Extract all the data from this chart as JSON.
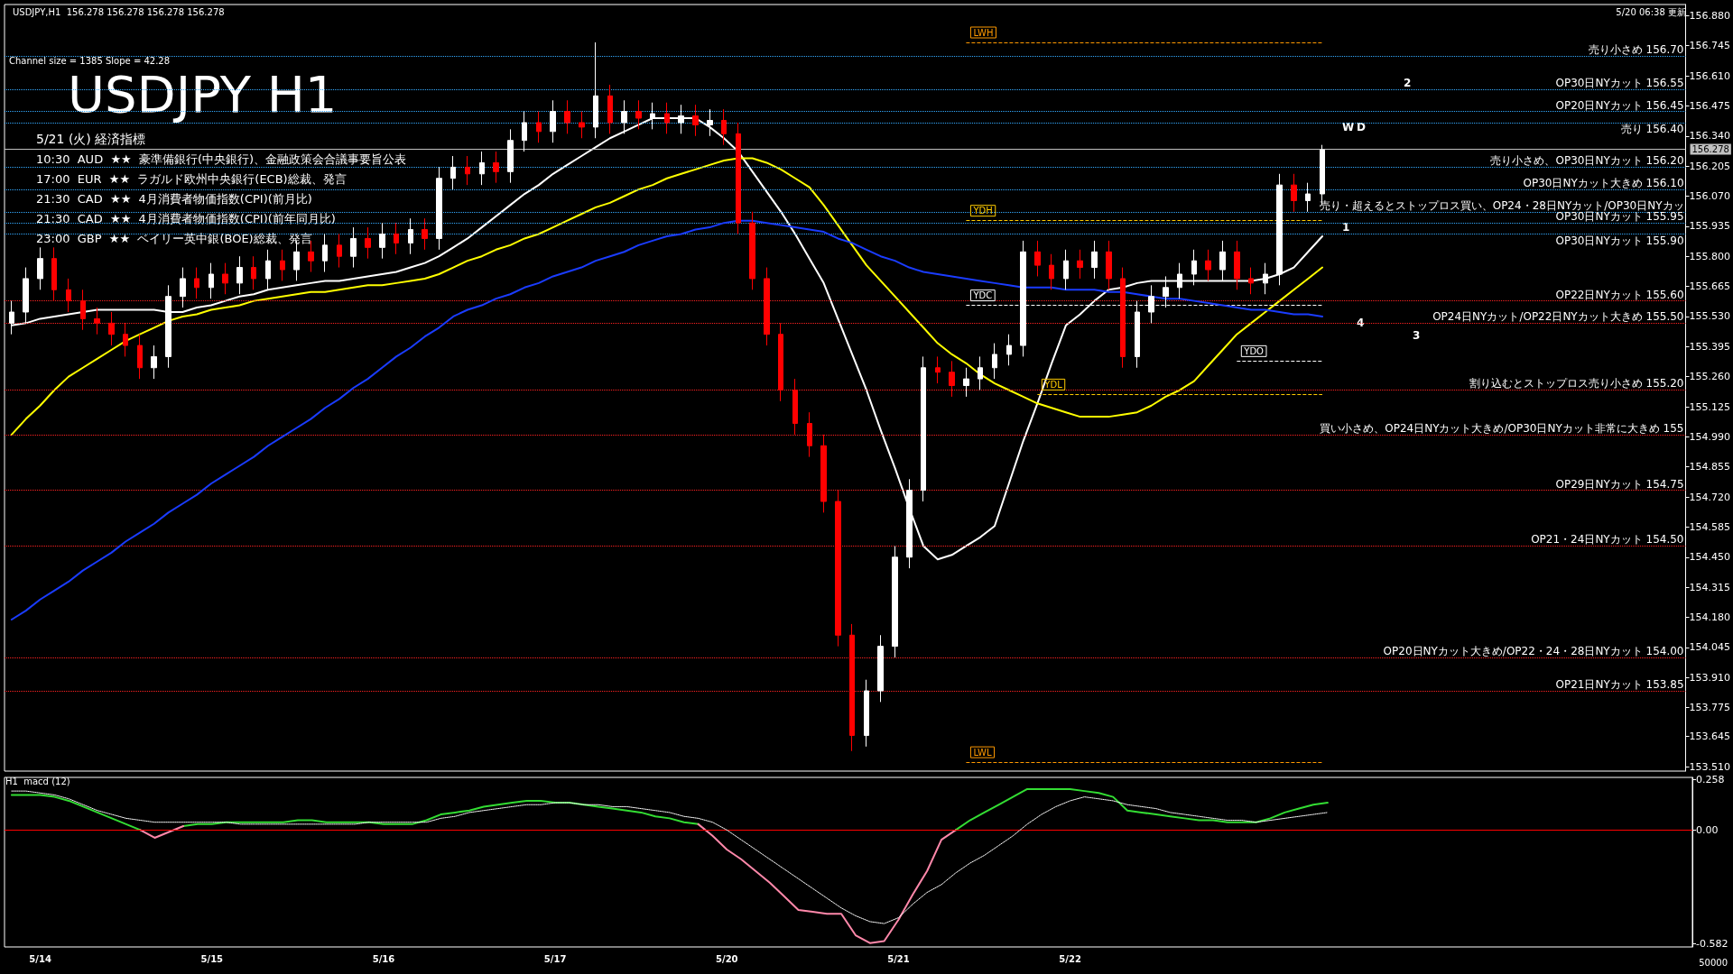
{
  "chart_data": [
    {
      "type": "candlestick",
      "title": "USDJPY H1",
      "subtitle": "5/21 (火) 経済指標",
      "tick_labels": "y",
      "categories": [
        null,
        null,
        null,
        null,
        null,
        null,
        null,
        null,
        null,
        null,
        null,
        null,
        null,
        null,
        null,
        null,
        null,
        null,
        null,
        null,
        null,
        null,
        null,
        null,
        null,
        null,
        null,
        null,
        null,
        null,
        null,
        null,
        null,
        null,
        null,
        null,
        null,
        null,
        null,
        null,
        null,
        null,
        null,
        null,
        null,
        null,
        null,
        null,
        null,
        null,
        null,
        null,
        null,
        null,
        null,
        null,
        null,
        null,
        null,
        null,
        null,
        null,
        null,
        null,
        null,
        null,
        null,
        null,
        null,
        null,
        null,
        null,
        null,
        null,
        null,
        null,
        null,
        null,
        null,
        null,
        null,
        null,
        null,
        null,
        null,
        null,
        null,
        null,
        null,
        null,
        null,
        null,
        null,
        null,
        null,
        null,
        null,
        null,
        null,
        null,
        null,
        null,
        null,
        null,
        null,
        null,
        null,
        null,
        null,
        null,
        null,
        null,
        null,
        null,
        null,
        null,
        null,
        null
      ],
      "ohlc": [
        [
          155.5,
          155.6,
          155.45,
          155.55
        ],
        [
          155.55,
          155.75,
          155.5,
          155.7
        ],
        [
          155.7,
          155.84,
          155.65,
          155.79
        ],
        [
          155.79,
          155.84,
          155.6,
          155.65
        ],
        [
          155.65,
          155.7,
          155.55,
          155.6
        ],
        [
          155.6,
          155.65,
          155.47,
          155.52
        ],
        [
          155.52,
          155.57,
          155.45,
          155.5
        ],
        [
          155.5,
          155.55,
          155.4,
          155.45
        ],
        [
          155.45,
          155.5,
          155.35,
          155.4
        ],
        [
          155.4,
          155.45,
          155.25,
          155.3
        ],
        [
          155.3,
          155.4,
          155.25,
          155.35
        ],
        [
          155.35,
          155.67,
          155.3,
          155.62
        ],
        [
          155.62,
          155.75,
          155.57,
          155.7
        ],
        [
          155.7,
          155.75,
          155.61,
          155.66
        ],
        [
          155.66,
          155.77,
          155.61,
          155.72
        ],
        [
          155.72,
          155.77,
          155.63,
          155.68
        ],
        [
          155.68,
          155.8,
          155.63,
          155.75
        ],
        [
          155.75,
          155.8,
          155.65,
          155.7
        ],
        [
          155.7,
          155.83,
          155.65,
          155.78
        ],
        [
          155.78,
          155.83,
          155.69,
          155.74
        ],
        [
          155.74,
          155.87,
          155.69,
          155.82
        ],
        [
          155.82,
          155.87,
          155.73,
          155.78
        ],
        [
          155.78,
          155.9,
          155.73,
          155.85
        ],
        [
          155.85,
          155.9,
          155.75,
          155.8
        ],
        [
          155.8,
          155.93,
          155.75,
          155.88
        ],
        [
          155.88,
          155.93,
          155.79,
          155.84
        ],
        [
          155.84,
          155.95,
          155.79,
          155.9
        ],
        [
          155.9,
          155.95,
          155.81,
          155.86
        ],
        [
          155.86,
          155.97,
          155.81,
          155.92
        ],
        [
          155.92,
          155.97,
          155.83,
          155.88
        ],
        [
          155.88,
          156.2,
          155.83,
          156.15
        ],
        [
          156.15,
          156.25,
          156.1,
          156.2
        ],
        [
          156.2,
          156.25,
          156.12,
          156.17
        ],
        [
          156.17,
          156.27,
          156.12,
          156.22
        ],
        [
          156.22,
          156.27,
          156.13,
          156.18
        ],
        [
          156.18,
          156.37,
          156.13,
          156.32
        ],
        [
          156.32,
          156.45,
          156.27,
          156.4
        ],
        [
          156.4,
          156.45,
          156.31,
          156.36
        ],
        [
          156.36,
          156.5,
          156.31,
          156.45
        ],
        [
          156.45,
          156.5,
          156.35,
          156.4
        ],
        [
          156.4,
          156.45,
          156.33,
          156.38
        ],
        [
          156.38,
          156.76,
          156.33,
          156.52
        ],
        [
          156.52,
          156.57,
          156.35,
          156.4
        ],
        [
          156.4,
          156.5,
          156.35,
          156.45
        ],
        [
          156.45,
          156.5,
          156.37,
          156.42
        ],
        [
          156.42,
          156.49,
          156.37,
          156.44
        ],
        [
          156.44,
          156.49,
          156.35,
          156.4
        ],
        [
          156.4,
          156.48,
          156.35,
          156.43
        ],
        [
          156.43,
          156.48,
          156.34,
          156.39
        ],
        [
          156.39,
          156.46,
          156.34,
          156.41
        ],
        [
          156.41,
          156.46,
          156.3,
          156.35
        ],
        [
          156.35,
          156.4,
          155.9,
          155.95
        ],
        [
          155.95,
          156.0,
          155.65,
          155.7
        ],
        [
          155.7,
          155.75,
          155.4,
          155.45
        ],
        [
          155.45,
          155.5,
          155.15,
          155.2
        ],
        [
          155.2,
          155.25,
          155.0,
          155.05
        ],
        [
          155.05,
          155.1,
          154.9,
          154.95
        ],
        [
          154.95,
          155.0,
          154.65,
          154.7
        ],
        [
          154.7,
          154.75,
          154.05,
          154.1
        ],
        [
          154.1,
          154.15,
          153.58,
          153.65
        ],
        [
          153.65,
          153.9,
          153.6,
          153.85
        ],
        [
          153.85,
          154.1,
          153.8,
          154.05
        ],
        [
          154.05,
          154.5,
          154.0,
          154.45
        ],
        [
          154.45,
          154.8,
          154.4,
          154.75
        ],
        [
          154.75,
          155.35,
          154.7,
          155.3
        ],
        [
          155.3,
          155.35,
          155.23,
          155.28
        ],
        [
          155.28,
          155.33,
          155.17,
          155.22
        ],
        [
          155.22,
          155.3,
          155.17,
          155.25
        ],
        [
          155.25,
          155.35,
          155.2,
          155.3
        ],
        [
          155.3,
          155.41,
          155.25,
          155.36
        ],
        [
          155.36,
          155.45,
          155.31,
          155.4
        ],
        [
          155.4,
          155.87,
          155.35,
          155.82
        ],
        [
          155.82,
          155.87,
          155.71,
          155.76
        ],
        [
          155.76,
          155.81,
          155.65,
          155.7
        ],
        [
          155.7,
          155.83,
          155.65,
          155.78
        ],
        [
          155.78,
          155.83,
          155.7,
          155.75
        ],
        [
          155.75,
          155.87,
          155.7,
          155.82
        ],
        [
          155.82,
          155.87,
          155.65,
          155.7
        ],
        [
          155.7,
          155.75,
          155.3,
          155.35
        ],
        [
          155.35,
          155.6,
          155.3,
          155.55
        ],
        [
          155.55,
          155.67,
          155.5,
          155.62
        ],
        [
          155.62,
          155.71,
          155.57,
          155.66
        ],
        [
          155.66,
          155.77,
          155.61,
          155.72
        ],
        [
          155.72,
          155.83,
          155.67,
          155.78
        ],
        [
          155.78,
          155.83,
          155.69,
          155.74
        ],
        [
          155.74,
          155.87,
          155.69,
          155.82
        ],
        [
          155.82,
          155.87,
          155.65,
          155.7
        ],
        [
          155.7,
          155.75,
          155.63,
          155.68
        ],
        [
          155.68,
          155.77,
          155.63,
          155.72
        ],
        [
          155.72,
          156.17,
          155.67,
          156.12
        ],
        [
          156.12,
          156.17,
          156.0,
          156.05
        ],
        [
          156.05,
          156.13,
          156.0,
          156.08
        ],
        [
          156.08,
          156.3,
          156.03,
          156.278
        ],
        null,
        null,
        null,
        null,
        null,
        null,
        null,
        null,
        null,
        null,
        null,
        null,
        null,
        null,
        null,
        null,
        null,
        null,
        null,
        null,
        null,
        null,
        null,
        null,
        null
      ],
      "colors": [
        "#ffffff",
        "#ffffff",
        "#ffffff",
        "#ff0000",
        "#ff0000",
        "#ff0000",
        "#ff0000",
        "#ff0000",
        "#ff0000",
        "#ff0000",
        "#ffffff",
        "#ffffff",
        "#ffffff",
        "#ff0000",
        "#ffffff",
        "#ff0000",
        "#ffffff",
        "#ff0000",
        "#ffffff",
        "#ff0000",
        "#ffffff",
        "#ff0000",
        "#ffffff",
        "#ff0000",
        "#ffffff",
        "#ff0000",
        "#ffffff",
        "#ff0000",
        "#ffffff",
        "#ff0000",
        "#ffffff",
        "#ffffff",
        "#ff0000",
        "#ffffff",
        "#ff0000",
        "#ffffff",
        "#ffffff",
        "#ff0000",
        "#ffffff",
        "#ff0000",
        "#ff0000",
        "#ffffff",
        "#ff0000",
        "#ffffff",
        "#ff0000",
        "#ffffff",
        "#ff0000",
        "#ffffff",
        "#ff0000",
        "#ffffff",
        "#ff0000",
        "#ff0000",
        "#ff0000",
        "#ff0000",
        "#ff0000",
        "#ff0000",
        "#ff0000",
        "#ff0000",
        "#ff0000",
        "#ff0000",
        "#ffffff",
        "#ffffff",
        "#ffffff",
        "#ffffff",
        "#ffffff",
        "#ff0000",
        "#ff0000",
        "#ffffff",
        "#ffffff",
        "#ffffff",
        "#ffffff",
        "#ffffff",
        "#ff0000",
        "#ff0000",
        "#ffffff",
        "#ff0000",
        "#ffffff",
        "#ff0000",
        "#ff0000",
        "#ffffff",
        "#ffffff",
        "#ffffff",
        "#ffffff",
        "#ffffff",
        "#ff0000",
        "#ffffff",
        "#ff0000",
        "#ff0000",
        "#ffffff",
        "#ffffff",
        "#ff0000",
        "#ffffff",
        "#ffffff",
        null,
        null,
        null,
        null,
        null,
        null,
        null,
        null,
        null,
        null,
        null,
        null,
        null,
        null,
        null,
        null,
        null,
        null,
        null,
        null,
        null,
        null,
        null,
        null,
        null
      ],
      "series": [
        {
          "type": "line",
          "color": "#ffffff",
          "values": [
            155.49,
            155.5,
            155.52,
            155.53,
            155.54,
            155.55,
            155.56,
            155.56,
            155.56,
            155.56,
            155.56,
            155.55,
            155.55,
            155.57,
            155.58,
            155.6,
            155.62,
            155.63,
            155.65,
            155.66,
            155.67,
            155.68,
            155.69,
            155.69,
            155.7,
            155.71,
            155.72,
            155.73,
            155.75,
            155.77,
            155.8,
            155.84,
            155.88,
            155.93,
            155.98,
            156.03,
            156.08,
            156.12,
            156.17,
            156.21,
            156.25,
            156.29,
            156.33,
            156.36,
            156.39,
            156.42,
            156.42,
            156.42,
            156.42,
            156.38,
            156.33,
            156.27,
            156.18,
            156.09,
            156.0,
            155.9,
            155.79,
            155.68,
            155.52,
            155.36,
            155.2,
            155.02,
            154.85,
            154.67,
            154.5,
            154.44,
            154.46,
            154.5,
            154.54,
            154.59,
            154.78,
            154.97,
            155.14,
            155.32,
            155.49,
            155.54,
            155.6,
            155.65,
            155.66,
            155.68,
            155.69,
            155.69,
            155.69,
            155.69,
            155.69,
            155.69,
            155.69,
            155.69,
            155.7,
            155.72,
            155.75,
            155.82,
            155.89,
            null,
            null,
            null,
            null,
            null,
            null,
            null,
            null,
            null,
            null,
            null,
            null,
            null,
            null,
            null,
            null,
            null,
            null,
            null,
            null,
            null,
            null,
            null,
            null,
            null
          ]
        },
        {
          "type": "line",
          "color": "#ffff00",
          "values": [
            155.0,
            155.07,
            155.13,
            155.2,
            155.26,
            155.3,
            155.34,
            155.38,
            155.42,
            155.45,
            155.48,
            155.51,
            155.53,
            155.54,
            155.56,
            155.57,
            155.58,
            155.6,
            155.61,
            155.62,
            155.63,
            155.64,
            155.64,
            155.65,
            155.66,
            155.67,
            155.67,
            155.68,
            155.69,
            155.7,
            155.72,
            155.75,
            155.78,
            155.8,
            155.83,
            155.85,
            155.88,
            155.9,
            155.93,
            155.96,
            155.99,
            156.02,
            156.04,
            156.07,
            156.1,
            156.12,
            156.15,
            156.17,
            156.19,
            156.21,
            156.23,
            156.24,
            156.24,
            156.22,
            156.19,
            156.15,
            156.11,
            156.03,
            155.94,
            155.85,
            155.76,
            155.69,
            155.62,
            155.55,
            155.48,
            155.41,
            155.36,
            155.32,
            155.27,
            155.23,
            155.2,
            155.17,
            155.14,
            155.12,
            155.1,
            155.08,
            155.08,
            155.08,
            155.09,
            155.1,
            155.13,
            155.17,
            155.2,
            155.24,
            155.31,
            155.38,
            155.45,
            155.5,
            155.55,
            155.6,
            155.65,
            155.7,
            155.75,
            null,
            null,
            null,
            null,
            null,
            null,
            null,
            null,
            null,
            null,
            null,
            null,
            null,
            null,
            null,
            null,
            null,
            null,
            null,
            null,
            null,
            null,
            null,
            null,
            null
          ]
        },
        {
          "type": "line",
          "color": "#1a3cff",
          "values": [
            154.17,
            154.21,
            154.26,
            154.3,
            154.34,
            154.39,
            154.43,
            154.47,
            154.52,
            154.56,
            154.6,
            154.65,
            154.69,
            154.73,
            154.78,
            154.82,
            154.86,
            154.9,
            154.95,
            154.99,
            155.03,
            155.07,
            155.12,
            155.16,
            155.21,
            155.25,
            155.3,
            155.35,
            155.39,
            155.44,
            155.48,
            155.53,
            155.56,
            155.58,
            155.61,
            155.63,
            155.66,
            155.68,
            155.71,
            155.73,
            155.75,
            155.78,
            155.8,
            155.82,
            155.85,
            155.87,
            155.89,
            155.9,
            155.92,
            155.93,
            155.95,
            155.96,
            155.96,
            155.95,
            155.94,
            155.93,
            155.92,
            155.91,
            155.88,
            155.86,
            155.83,
            155.8,
            155.78,
            155.75,
            155.73,
            155.72,
            155.71,
            155.7,
            155.69,
            155.68,
            155.67,
            155.66,
            155.66,
            155.66,
            155.65,
            155.65,
            155.65,
            155.64,
            155.64,
            155.63,
            155.62,
            155.61,
            155.61,
            155.6,
            155.59,
            155.58,
            155.57,
            155.56,
            155.56,
            155.55,
            155.54,
            155.54,
            155.53,
            null,
            null,
            null,
            null,
            null,
            null,
            null,
            null,
            null,
            null,
            null,
            null,
            null,
            null,
            null,
            null,
            null,
            null,
            null,
            null,
            null,
            null,
            null,
            null,
            null
          ]
        }
      ],
      "ylim": [
        153.49,
        156.93
      ],
      "yticks": [
        {
          "value": 156.88,
          "label": "156.880"
        },
        {
          "value": 156.745,
          "label": "156.745"
        },
        {
          "value": 156.61,
          "label": "156.610"
        },
        {
          "value": 156.475,
          "label": "156.475"
        },
        {
          "value": 156.34,
          "label": "156.340"
        },
        {
          "value": 156.205,
          "label": "156.205"
        },
        {
          "value": 156.07,
          "label": "156.070"
        },
        {
          "value": 155.935,
          "label": "155.935"
        },
        {
          "value": 155.8,
          "label": "155.800"
        },
        {
          "value": 155.665,
          "label": "155.665"
        },
        {
          "value": 155.53,
          "label": "155.530"
        },
        {
          "value": 155.395,
          "label": "155.395"
        },
        {
          "value": 155.26,
          "label": "155.260"
        },
        {
          "value": 155.125,
          "label": "155.125"
        },
        {
          "value": 154.99,
          "label": "154.990"
        },
        {
          "value": 154.855,
          "label": "154.855"
        },
        {
          "value": 154.72,
          "label": "154.720"
        },
        {
          "value": 154.585,
          "label": "154.585"
        },
        {
          "value": 154.45,
          "label": "154.450"
        },
        {
          "value": 154.315,
          "label": "154.315"
        },
        {
          "value": 154.18,
          "label": "154.180"
        },
        {
          "value": 154.045,
          "label": "154.045"
        },
        {
          "value": 153.91,
          "label": "153.910"
        },
        {
          "value": 153.775,
          "label": "153.775"
        },
        {
          "value": 153.645,
          "label": "153.645"
        },
        {
          "value": 153.51,
          "label": "153.510"
        }
      ],
      "ref_lines": [
        {
          "axis": "y",
          "value": 156.7,
          "label": "売り小さめ 156.70",
          "color": "#33aaff",
          "line_style": "dotted"
        },
        {
          "axis": "y",
          "value": 156.55,
          "label": "OP30日NYカット 156.55",
          "color": "#33aaff",
          "line_style": "dotted"
        },
        {
          "axis": "y",
          "value": 156.45,
          "label": "OP20日NYカット 156.45",
          "color": "#33aaff",
          "line_style": "dotted"
        },
        {
          "axis": "y",
          "value": 156.4,
          "label": "売り 156.40",
          "color": "#33aaff",
          "line_style": "dotted"
        },
        {
          "axis": "y",
          "value": 156.2,
          "label": "売り小さめ、OP30日NYカット 156.20",
          "color": "#33aaff",
          "line_style": "dotted"
        },
        {
          "axis": "y",
          "value": 156.1,
          "label": "OP30日NYカット大きめ 156.10",
          "color": "#33aaff",
          "line_style": "dotted"
        },
        {
          "axis": "y",
          "value": 156.0,
          "label": "売り・超えるとストップロス買い、OP24・28日NYカット/OP30日NYカッ",
          "color": "#33aaff",
          "line_style": "dotted"
        },
        {
          "axis": "y",
          "value": 155.95,
          "label": "OP30日NYカット 155.95",
          "color": "#33aaff",
          "line_style": "dotted"
        },
        {
          "axis": "y",
          "value": 155.9,
          "label": "OP30日NYカット 155.90",
          "color": "#33aaff",
          "line_style": "dotted"
        },
        {
          "axis": "y",
          "value": 155.6,
          "label": "OP22日NYカット 155.60",
          "color": "#ff2222",
          "line_style": "dotted"
        },
        {
          "axis": "y",
          "value": 155.5,
          "label": "OP24日NYカット/OP22日NYカット大きめ 155.50",
          "color": "#ff2222",
          "line_style": "dotted"
        },
        {
          "axis": "y",
          "value": 155.2,
          "label": "割り込むとストップロス売り小さめ 155.20",
          "color": "#ff2222",
          "line_style": "dotted"
        },
        {
          "axis": "y",
          "value": 155.0,
          "label": "買い小さめ、OP24日NYカット大きめ/OP30日NYカット非常に大きめ 155",
          "color": "#ff2222",
          "line_style": "dotted"
        },
        {
          "axis": "y",
          "value": 154.75,
          "label": "OP29日NYカット 154.75",
          "color": "#ff2222",
          "line_style": "dotted"
        },
        {
          "axis": "y",
          "value": 154.5,
          "label": "OP21・24日NYカット 154.50",
          "color": "#ff2222",
          "line_style": "dotted"
        },
        {
          "axis": "y",
          "value": 154.0,
          "label": "OP20日NYカット大きめ/OP22・24・28日NYカット 154.00",
          "color": "#ff2222",
          "line_style": "dotted"
        },
        {
          "axis": "y",
          "value": 153.85,
          "label": "OP21日NYカット 153.85",
          "color": "#ff2222",
          "line_style": "dotted"
        },
        {
          "axis": "y",
          "value": 156.76,
          "label": "LWH",
          "color": "#ff9900",
          "line_style": "dashed"
        },
        {
          "axis": "y",
          "value": 155.96,
          "label": "YDH",
          "color": "#ffcc00",
          "line_style": "dashed"
        },
        {
          "axis": "y",
          "value": 155.58,
          "label": "YDC",
          "color": "#ffffff",
          "line_style": "dashed"
        },
        {
          "axis": "y",
          "value": 155.33,
          "label": "YDO",
          "color": "#ffffff",
          "line_style": "dashed"
        },
        {
          "axis": "y",
          "value": 155.18,
          "label": "YDL",
          "color": "#ffcc00",
          "line_style": "dashed"
        },
        {
          "axis": "y",
          "value": 153.53,
          "label": "LWL",
          "color": "#ff9900",
          "line_style": "dashed"
        },
        {
          "axis": "y",
          "value": 156.278,
          "label": "156.278",
          "color": "#c0c0c0",
          "line_style": "solid"
        }
      ],
      "annotations": [
        "USDJPY,H1  156.278 156.278 156.278 156.278",
        "5/20 06:38 更新",
        "Channel size = 1385 Slope = 42.28",
        "10:30  AUD  ★★  豪準備銀行(中央銀行)、金融政策会合議事要旨公表",
        "17:00  EUR  ★★  ラガルド欧州中央銀行(ECB)総裁、発言",
        "21:30  CAD  ★★  4月消費者物価指数(CPI)(前月比)",
        "21:30  CAD  ★★  4月消費者物価指数(CPI)(前年同月比)",
        "23:00  GBP  ★★  ベイリー英中銀(BOE)総裁、発言",
        {
          "text": "W",
          "y": 156.38
        },
        {
          "text": "D",
          "y": 156.38
        },
        "2",
        {
          "text": "1",
          "y": 155.93
        },
        {
          "text": "4",
          "y": 155.5
        },
        "3"
      ]
    },
    {
      "type": "line",
      "title": "H1  macd (12)",
      "categories": [
        null,
        null,
        "5/14",
        null,
        null,
        null,
        null,
        null,
        null,
        null,
        null,
        null,
        null,
        null,
        "5/15",
        null,
        null,
        null,
        null,
        null,
        null,
        null,
        null,
        null,
        null,
        null,
        "5/16",
        null,
        null,
        null,
        null,
        null,
        null,
        null,
        null,
        null,
        null,
        null,
        "5/17",
        null,
        null,
        null,
        null,
        null,
        null,
        null,
        null,
        null,
        null,
        null,
        "5/20",
        null,
        null,
        null,
        null,
        null,
        null,
        null,
        null,
        null,
        null,
        null,
        "5/21",
        null,
        null,
        null,
        null,
        null,
        null,
        null,
        null,
        null,
        null,
        null,
        "5/22",
        null,
        null,
        null,
        null,
        null,
        null,
        null,
        null,
        null,
        null,
        null,
        null,
        null,
        null,
        null,
        null,
        null,
        null,
        null,
        null,
        null,
        null,
        null,
        null,
        null,
        null,
        null,
        null,
        null,
        null,
        null,
        null,
        null,
        null,
        null,
        null,
        null,
        null,
        null,
        null,
        null,
        null,
        null
      ],
      "series": [
        {
          "color": "#33dd33",
          "values": [
            0.18,
            0.18,
            0.18,
            0.17,
            0.15,
            0.12,
            0.09,
            0.06,
            0.03,
            0.0,
            null,
            null,
            0.02,
            0.03,
            0.03,
            0.04,
            0.04,
            0.04,
            0.04,
            0.04,
            0.05,
            0.05,
            0.04,
            0.04,
            0.04,
            0.04,
            0.03,
            0.03,
            0.03,
            0.05,
            0.08,
            0.09,
            0.1,
            0.12,
            0.13,
            0.14,
            0.15,
            0.15,
            0.14,
            0.14,
            0.13,
            0.12,
            0.11,
            0.1,
            0.09,
            0.07,
            0.06,
            0.04,
            0.03,
            null,
            null,
            null,
            null,
            null,
            null,
            null,
            null,
            null,
            null,
            null,
            null,
            null,
            null,
            null,
            null,
            null,
            0.0,
            0.05,
            0.09,
            0.13,
            0.17,
            0.21,
            0.21,
            0.21,
            0.21,
            0.2,
            0.19,
            0.17,
            0.1,
            0.09,
            0.08,
            0.07,
            0.06,
            0.05,
            0.05,
            0.04,
            0.04,
            0.04,
            0.06,
            0.09,
            0.11,
            0.13,
            0.14,
            null,
            null,
            null,
            null,
            null,
            null,
            null,
            null,
            null,
            null,
            null,
            null,
            null,
            null,
            null,
            null,
            null,
            null,
            null,
            null,
            null,
            null,
            null,
            null,
            null
          ]
        },
        {
          "color": "#ff88aa",
          "values": [
            null,
            null,
            null,
            null,
            null,
            null,
            null,
            null,
            null,
            0.0,
            -0.04,
            -0.01,
            0.02,
            null,
            null,
            null,
            null,
            null,
            null,
            null,
            null,
            null,
            null,
            null,
            null,
            null,
            null,
            null,
            null,
            null,
            null,
            null,
            null,
            null,
            null,
            null,
            null,
            null,
            null,
            null,
            null,
            null,
            null,
            null,
            null,
            null,
            null,
            null,
            0.03,
            -0.03,
            -0.1,
            -0.15,
            -0.21,
            -0.27,
            -0.34,
            -0.41,
            -0.42,
            -0.43,
            -0.43,
            -0.54,
            -0.58,
            -0.57,
            -0.46,
            -0.33,
            -0.21,
            -0.05,
            0.0,
            null,
            null,
            null,
            null,
            null,
            null,
            null,
            null,
            null,
            null,
            null,
            null,
            null,
            null,
            null,
            null,
            null,
            null,
            null,
            null,
            null,
            null,
            null,
            null,
            null,
            null,
            null,
            null,
            null,
            null,
            null,
            null,
            null,
            null,
            null,
            null,
            null,
            null,
            null,
            null,
            null,
            null,
            null,
            null,
            null,
            null,
            null,
            null,
            null,
            null,
            null
          ]
        },
        {
          "color": "#ffffff",
          "line_style": "dotted",
          "values": [
            0.2,
            0.2,
            0.19,
            0.18,
            0.16,
            0.13,
            0.1,
            0.08,
            0.06,
            0.05,
            0.04,
            0.04,
            0.04,
            0.04,
            0.04,
            0.04,
            0.03,
            0.03,
            0.03,
            0.03,
            0.03,
            0.03,
            0.03,
            0.03,
            0.03,
            0.04,
            0.04,
            0.04,
            0.04,
            0.04,
            0.06,
            0.07,
            0.09,
            0.1,
            0.11,
            0.12,
            0.13,
            0.13,
            0.14,
            0.14,
            0.13,
            0.13,
            0.12,
            0.12,
            0.11,
            0.1,
            0.09,
            0.07,
            0.06,
            0.04,
            0.0,
            -0.05,
            -0.1,
            -0.15,
            -0.2,
            -0.25,
            -0.3,
            -0.35,
            -0.4,
            -0.44,
            -0.47,
            -0.48,
            -0.45,
            -0.38,
            -0.32,
            -0.28,
            -0.22,
            -0.17,
            -0.13,
            -0.08,
            -0.03,
            0.03,
            0.08,
            0.12,
            0.15,
            0.17,
            0.16,
            0.15,
            0.13,
            0.12,
            0.11,
            0.09,
            0.08,
            0.07,
            0.06,
            0.05,
            0.05,
            0.04,
            0.05,
            0.06,
            0.07,
            0.08,
            0.09,
            null,
            null,
            null,
            null,
            null,
            null,
            null,
            null,
            null,
            null,
            null,
            null,
            null,
            null,
            null,
            null,
            null,
            null,
            null,
            null,
            null,
            null,
            null,
            null,
            null
          ]
        }
      ],
      "ylim": [
        -0.6,
        0.27
      ],
      "yticks": [
        {
          "value": 0.258,
          "label": "0.258"
        },
        {
          "value": 0,
          "label": "0.00"
        },
        {
          "value": -0.582,
          "label": "-0.582"
        }
      ],
      "ref_lines": [
        {
          "axis": "y",
          "value": 0,
          "color": "#ff0000",
          "line_style": "solid"
        }
      ],
      "annotations": [
        "50000"
      ]
    }
  ]
}
